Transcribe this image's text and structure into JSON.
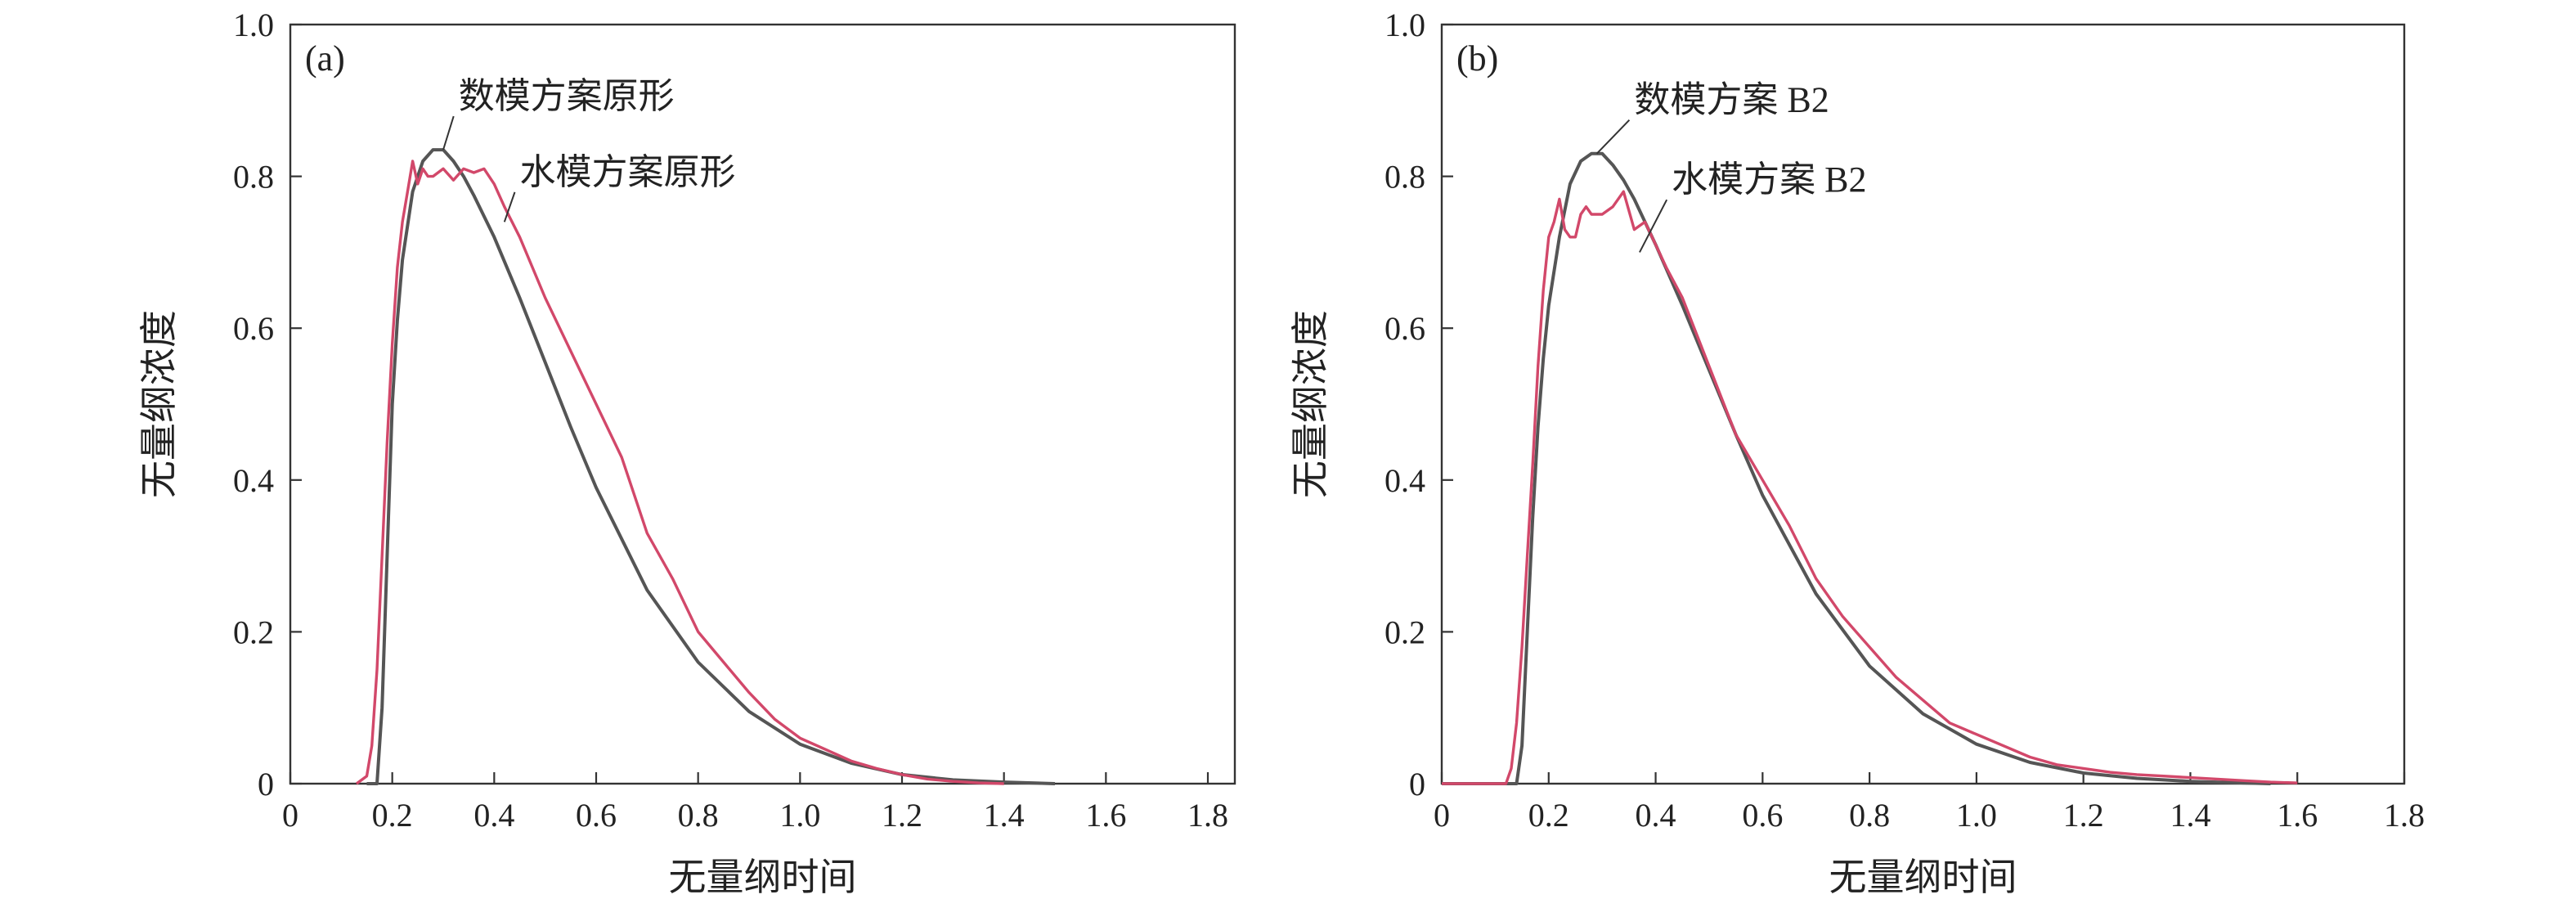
{
  "chart_data": [
    {
      "type": "line",
      "panel_label": "(a)",
      "xlabel": "无量纲时间",
      "ylabel": "无量纲浓度",
      "xlim": [
        0,
        1.8
      ],
      "ylim": [
        0,
        1.0
      ],
      "x_ticks": [
        "0",
        "0.2",
        "0.4",
        "0.6",
        "0.8",
        "1.0",
        "1.2",
        "1.4",
        "1.6",
        "1.8"
      ],
      "y_ticks": [
        "0",
        "0.2",
        "0.4",
        "0.6",
        "0.8",
        "1.0"
      ],
      "grid": false,
      "series": [
        {
          "name": "数模方案原形",
          "color": "#555555",
          "x": [
            0.15,
            0.17,
            0.18,
            0.19,
            0.2,
            0.21,
            0.22,
            0.24,
            0.26,
            0.28,
            0.3,
            0.32,
            0.34,
            0.36,
            0.4,
            0.45,
            0.5,
            0.55,
            0.6,
            0.7,
            0.8,
            0.9,
            1.0,
            1.1,
            1.2,
            1.3,
            1.4,
            1.5
          ],
          "y": [
            0.0,
            0.0,
            0.1,
            0.3,
            0.5,
            0.61,
            0.69,
            0.78,
            0.82,
            0.835,
            0.835,
            0.82,
            0.8,
            0.775,
            0.72,
            0.64,
            0.555,
            0.47,
            0.39,
            0.255,
            0.16,
            0.095,
            0.052,
            0.027,
            0.012,
            0.005,
            0.002,
            0.0
          ]
        },
        {
          "name": "水模方案原形",
          "color": "#d2486a",
          "x": [
            0.13,
            0.15,
            0.16,
            0.17,
            0.18,
            0.19,
            0.2,
            0.21,
            0.22,
            0.23,
            0.24,
            0.25,
            0.26,
            0.27,
            0.28,
            0.3,
            0.32,
            0.34,
            0.36,
            0.38,
            0.4,
            0.42,
            0.45,
            0.5,
            0.55,
            0.6,
            0.65,
            0.7,
            0.75,
            0.8,
            0.85,
            0.9,
            0.95,
            1.0,
            1.05,
            1.1,
            1.15,
            1.2,
            1.25,
            1.3,
            1.35,
            1.4
          ],
          "y": [
            0.0,
            0.01,
            0.05,
            0.15,
            0.3,
            0.45,
            0.58,
            0.68,
            0.74,
            0.78,
            0.82,
            0.79,
            0.81,
            0.8,
            0.8,
            0.81,
            0.795,
            0.81,
            0.805,
            0.81,
            0.79,
            0.76,
            0.72,
            0.64,
            0.57,
            0.5,
            0.43,
            0.33,
            0.27,
            0.2,
            0.16,
            0.12,
            0.085,
            0.06,
            0.045,
            0.03,
            0.02,
            0.012,
            0.006,
            0.003,
            0.001,
            0.0
          ]
        }
      ],
      "annotations": [
        {
          "text": "数模方案原形",
          "x": 0.33,
          "y": 0.89,
          "arrow_to": [
            0.3,
            0.835
          ]
        },
        {
          "text": "水模方案原形",
          "x": 0.45,
          "y": 0.79,
          "arrow_to": [
            0.42,
            0.74
          ]
        }
      ]
    },
    {
      "type": "line",
      "panel_label": "(b)",
      "xlabel": "无量纲时间",
      "ylabel": "无量纲浓度",
      "xlim": [
        0,
        1.8
      ],
      "ylim": [
        0,
        1.0
      ],
      "x_ticks": [
        "0",
        "0.2",
        "0.4",
        "0.6",
        "0.8",
        "1.0",
        "1.2",
        "1.4",
        "1.6",
        "1.8"
      ],
      "y_ticks": [
        "0",
        "0.2",
        "0.4",
        "0.6",
        "0.8",
        "1.0"
      ],
      "grid": false,
      "series": [
        {
          "name": "数模方案 B2",
          "color": "#555555",
          "x": [
            0.0,
            0.14,
            0.15,
            0.16,
            0.17,
            0.18,
            0.19,
            0.2,
            0.22,
            0.24,
            0.26,
            0.28,
            0.3,
            0.32,
            0.34,
            0.36,
            0.4,
            0.45,
            0.5,
            0.55,
            0.6,
            0.7,
            0.8,
            0.9,
            1.0,
            1.1,
            1.2,
            1.3,
            1.4,
            1.5,
            1.55
          ],
          "y": [
            0.0,
            0.0,
            0.05,
            0.2,
            0.35,
            0.47,
            0.56,
            0.63,
            0.72,
            0.79,
            0.82,
            0.83,
            0.83,
            0.815,
            0.795,
            0.77,
            0.71,
            0.63,
            0.545,
            0.46,
            0.38,
            0.25,
            0.155,
            0.092,
            0.052,
            0.028,
            0.014,
            0.007,
            0.003,
            0.001,
            0.0
          ]
        },
        {
          "name": "水模方案 B2",
          "color": "#d2486a",
          "x": [
            0.0,
            0.12,
            0.13,
            0.14,
            0.15,
            0.16,
            0.17,
            0.18,
            0.19,
            0.2,
            0.21,
            0.22,
            0.23,
            0.24,
            0.25,
            0.26,
            0.27,
            0.28,
            0.3,
            0.32,
            0.34,
            0.36,
            0.38,
            0.4,
            0.42,
            0.45,
            0.5,
            0.55,
            0.6,
            0.65,
            0.7,
            0.75,
            0.8,
            0.85,
            0.9,
            0.95,
            1.0,
            1.05,
            1.1,
            1.15,
            1.2,
            1.25,
            1.3,
            1.35,
            1.4,
            1.45,
            1.5,
            1.55,
            1.6
          ],
          "y": [
            0.0,
            0.0,
            0.02,
            0.08,
            0.18,
            0.3,
            0.42,
            0.55,
            0.65,
            0.72,
            0.74,
            0.77,
            0.73,
            0.72,
            0.72,
            0.75,
            0.76,
            0.75,
            0.75,
            0.76,
            0.78,
            0.73,
            0.74,
            0.71,
            0.68,
            0.64,
            0.55,
            0.46,
            0.4,
            0.34,
            0.27,
            0.22,
            0.18,
            0.14,
            0.11,
            0.08,
            0.065,
            0.05,
            0.035,
            0.025,
            0.02,
            0.015,
            0.012,
            0.01,
            0.008,
            0.006,
            0.004,
            0.002,
            0.001
          ]
        }
      ],
      "annotations": [
        {
          "text": "数模方案 B2",
          "x": 0.36,
          "y": 0.885,
          "arrow_to": [
            0.29,
            0.83
          ]
        },
        {
          "text": "水模方案 B2",
          "x": 0.43,
          "y": 0.78,
          "arrow_to": [
            0.37,
            0.7
          ]
        }
      ]
    }
  ]
}
